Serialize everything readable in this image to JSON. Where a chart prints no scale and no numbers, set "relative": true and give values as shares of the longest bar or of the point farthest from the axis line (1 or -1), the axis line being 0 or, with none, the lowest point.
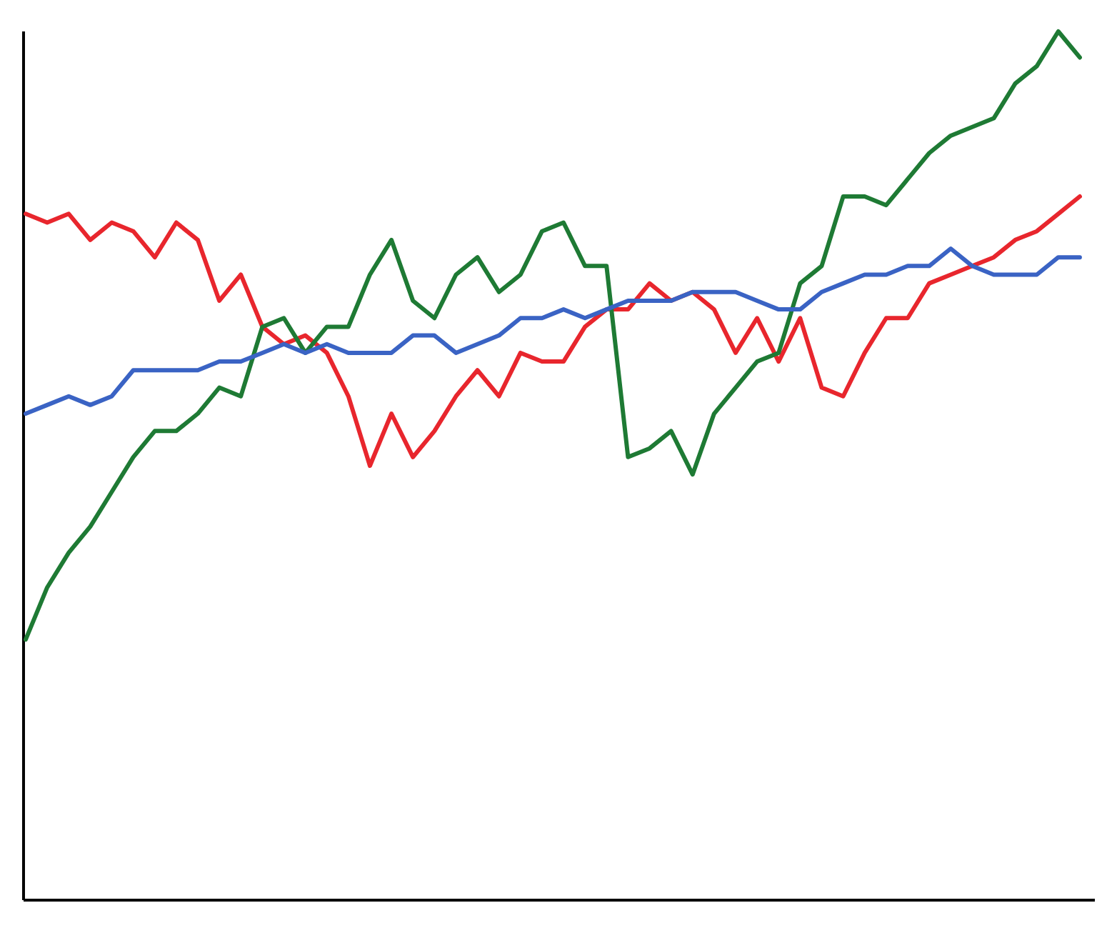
{
  "chart_data": {
    "type": "line",
    "relative": true,
    "categories": [
      null,
      null,
      null,
      null,
      null,
      null,
      null,
      null,
      null,
      null,
      null,
      null,
      null,
      null,
      null,
      null,
      null,
      null,
      null,
      null,
      null,
      null,
      null,
      null,
      null,
      null,
      null,
      null,
      null,
      null,
      null,
      null,
      null,
      null,
      null,
      null,
      null,
      null,
      null,
      null,
      null,
      null,
      null,
      null,
      null,
      null,
      null,
      null,
      null,
      null
    ],
    "series": [
      {
        "color": "#e8262d",
        "values": [
          0.79,
          0.78,
          0.79,
          0.76,
          0.78,
          0.77,
          0.74,
          0.78,
          0.76,
          0.69,
          0.72,
          0.66,
          0.64,
          0.65,
          0.63,
          0.58,
          0.5,
          0.56,
          0.51,
          0.54,
          0.58,
          0.61,
          0.58,
          0.63,
          0.62,
          0.62,
          0.66,
          0.68,
          0.68,
          0.71,
          0.69,
          0.7,
          0.68,
          0.63,
          0.67,
          0.62,
          0.67,
          0.59,
          0.58,
          0.63,
          0.67,
          0.67,
          0.71,
          0.72,
          0.73,
          0.74,
          0.76,
          0.77,
          0.79,
          0.81
        ]
      },
      {
        "color": "#1e7a34",
        "values": [
          0.3,
          0.36,
          0.4,
          0.43,
          0.47,
          0.51,
          0.54,
          0.54,
          0.56,
          0.59,
          0.58,
          0.66,
          0.67,
          0.63,
          0.66,
          0.66,
          0.72,
          0.76,
          0.69,
          0.67,
          0.72,
          0.74,
          0.7,
          0.72,
          0.77,
          0.78,
          0.73,
          0.73,
          0.51,
          0.52,
          0.54,
          0.49,
          0.56,
          0.59,
          0.62,
          0.63,
          0.71,
          0.73,
          0.81,
          0.81,
          0.8,
          0.83,
          0.86,
          0.88,
          0.89,
          0.9,
          0.94,
          0.96,
          1.0,
          0.97
        ]
      },
      {
        "color": "#3a63c4",
        "values": [
          0.56,
          0.57,
          0.58,
          0.57,
          0.58,
          0.61,
          0.61,
          0.61,
          0.61,
          0.62,
          0.62,
          0.63,
          0.64,
          0.63,
          0.64,
          0.63,
          0.63,
          0.63,
          0.65,
          0.65,
          0.63,
          0.64,
          0.65,
          0.67,
          0.67,
          0.68,
          0.67,
          0.68,
          0.69,
          0.69,
          0.69,
          0.7,
          0.7,
          0.7,
          0.69,
          0.68,
          0.68,
          0.7,
          0.71,
          0.72,
          0.72,
          0.73,
          0.73,
          0.75,
          0.73,
          0.72,
          0.72,
          0.72,
          0.74,
          0.74
        ]
      }
    ]
  }
}
